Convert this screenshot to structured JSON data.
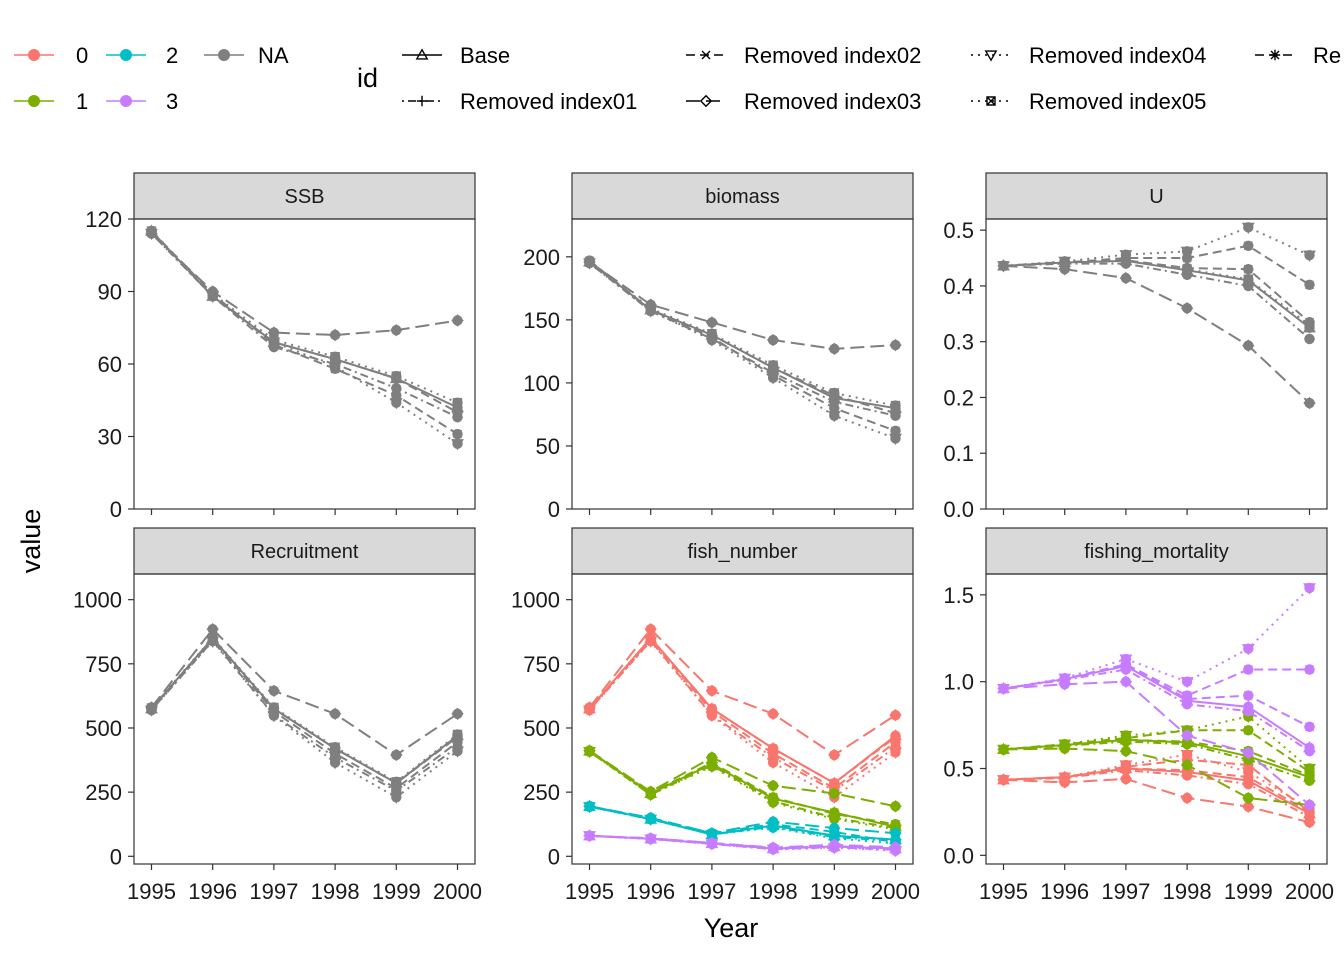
{
  "legend": {
    "colour": [
      {
        "label": "0",
        "color": "#F8766D"
      },
      {
        "label": "1",
        "color": "#7CAE00"
      },
      {
        "label": "2",
        "color": "#00BFC4"
      },
      {
        "label": "3",
        "color": "#C77CFF"
      },
      {
        "label": "NA",
        "color": "#7F7F7F"
      }
    ],
    "id_title": "id",
    "id": [
      {
        "label": "Base",
        "dash": "solid",
        "shape": "triangle"
      },
      {
        "label": "Removed index01",
        "dash": "dotdash",
        "shape": "plus"
      },
      {
        "label": "Removed index02",
        "dash": "dashed",
        "shape": "cross"
      },
      {
        "label": "Removed index03",
        "dash": "longdash",
        "shape": "diamond"
      },
      {
        "label": "Removed index04",
        "dash": "dotted",
        "shape": "triangle-down"
      },
      {
        "label": "Removed index05",
        "dash": "dotted",
        "shape": "square-cross"
      },
      {
        "label": "Re",
        "dash": "dashed",
        "shape": "asterisk"
      }
    ]
  },
  "axes": {
    "xlabel": "Year",
    "ylabel": "value"
  },
  "chart_data": [
    {
      "type": "line",
      "title": "SSB",
      "x": [
        1995,
        1996,
        1997,
        1998,
        1999,
        2000
      ],
      "ylim": [
        0,
        120
      ],
      "yticks": [
        "0",
        "30",
        "60",
        "90",
        "120"
      ],
      "series": [
        {
          "id": "Base",
          "group": "NA",
          "values": [
            115,
            88,
            69,
            62,
            54,
            42
          ]
        },
        {
          "id": "Removed index01",
          "group": "NA",
          "values": [
            114,
            88,
            67,
            60,
            50,
            38
          ]
        },
        {
          "id": "Removed index02",
          "group": "NA",
          "values": [
            115,
            89,
            68,
            58,
            47,
            31
          ]
        },
        {
          "id": "Removed index03",
          "group": "NA",
          "values": [
            114,
            90,
            73,
            72,
            74,
            78
          ]
        },
        {
          "id": "Removed index04",
          "group": "NA",
          "values": [
            114,
            88,
            69,
            59,
            44,
            27
          ]
        },
        {
          "id": "Removed index05",
          "group": "NA",
          "values": [
            115,
            89,
            70,
            63,
            55,
            44
          ]
        },
        {
          "id": "Re",
          "group": "NA",
          "values": [
            115,
            88,
            69,
            62,
            54,
            40
          ]
        }
      ]
    },
    {
      "type": "line",
      "title": "biomass",
      "x": [
        1995,
        1996,
        1997,
        1998,
        1999,
        2000
      ],
      "ylim": [
        0,
        230
      ],
      "yticks": [
        "0",
        "50",
        "100",
        "150",
        "200"
      ],
      "series": [
        {
          "id": "Base",
          "group": "NA",
          "values": [
            196,
            158,
            138,
            112,
            88,
            80
          ]
        },
        {
          "id": "Removed index01",
          "group": "NA",
          "values": [
            195,
            157,
            135,
            108,
            85,
            74
          ]
        },
        {
          "id": "Removed index02",
          "group": "NA",
          "values": [
            197,
            158,
            136,
            106,
            80,
            62
          ]
        },
        {
          "id": "Removed index03",
          "group": "NA",
          "values": [
            196,
            162,
            148,
            134,
            127,
            130
          ]
        },
        {
          "id": "Removed index04",
          "group": "NA",
          "values": [
            195,
            157,
            134,
            104,
            74,
            56
          ]
        },
        {
          "id": "Removed index05",
          "group": "NA",
          "values": [
            196,
            159,
            139,
            114,
            92,
            82
          ]
        },
        {
          "id": "Re",
          "group": "NA",
          "values": [
            196,
            158,
            138,
            112,
            90,
            76
          ]
        }
      ]
    },
    {
      "type": "line",
      "title": "U",
      "x": [
        1995,
        1996,
        1997,
        1998,
        1999,
        2000
      ],
      "ylim": [
        0,
        0.52
      ],
      "yticks": [
        "0.0",
        "0.1",
        "0.2",
        "0.3",
        "0.4",
        "0.5"
      ],
      "series": [
        {
          "id": "Base",
          "group": "NA",
          "values": [
            0.436,
            0.442,
            0.445,
            0.428,
            0.41,
            0.325
          ]
        },
        {
          "id": "Removed index01",
          "group": "NA",
          "values": [
            0.436,
            0.44,
            0.44,
            0.42,
            0.4,
            0.305
          ]
        },
        {
          "id": "Removed index02",
          "group": "NA",
          "values": [
            0.436,
            0.442,
            0.45,
            0.45,
            0.472,
            0.402
          ]
        },
        {
          "id": "Removed index03",
          "group": "NA",
          "values": [
            0.436,
            0.43,
            0.414,
            0.36,
            0.293,
            0.19
          ]
        },
        {
          "id": "Removed index04",
          "group": "NA",
          "values": [
            0.436,
            0.444,
            0.456,
            0.462,
            0.505,
            0.455
          ]
        },
        {
          "id": "Removed index05",
          "group": "NA",
          "values": [
            0.436,
            0.443,
            0.446,
            0.43,
            0.412,
            0.33
          ]
        },
        {
          "id": "Re",
          "group": "NA",
          "values": [
            0.436,
            0.443,
            0.446,
            0.432,
            0.43,
            0.335
          ]
        }
      ]
    },
    {
      "type": "line",
      "title": "Recruitment",
      "x": [
        1995,
        1996,
        1997,
        1998,
        1999,
        2000
      ],
      "ylim": [
        -30,
        1100
      ],
      "yticks": [
        "0",
        "250",
        "500",
        "750",
        "1000"
      ],
      "series": [
        {
          "id": "Base",
          "group": "NA",
          "values": [
            575,
            850,
            575,
            420,
            285,
            470
          ]
        },
        {
          "id": "Removed index01",
          "group": "NA",
          "values": [
            570,
            840,
            550,
            385,
            255,
            425
          ]
        },
        {
          "id": "Removed index02",
          "group": "NA",
          "values": [
            575,
            845,
            565,
            400,
            265,
            445
          ]
        },
        {
          "id": "Removed index03",
          "group": "NA",
          "values": [
            580,
            885,
            645,
            555,
            395,
            555
          ]
        },
        {
          "id": "Removed index04",
          "group": "NA",
          "values": [
            570,
            838,
            548,
            365,
            230,
            410
          ]
        },
        {
          "id": "Removed index05",
          "group": "NA",
          "values": [
            578,
            852,
            580,
            425,
            290,
            475
          ]
        },
        {
          "id": "Re",
          "group": "NA",
          "values": [
            575,
            850,
            575,
            420,
            285,
            465
          ]
        }
      ]
    },
    {
      "type": "line",
      "title": "fish_number",
      "x": [
        1995,
        1996,
        1997,
        1998,
        1999,
        2000
      ],
      "ylim": [
        -30,
        1100
      ],
      "yticks": [
        "0",
        "250",
        "500",
        "750",
        "1000"
      ],
      "series": [
        {
          "id": "Base",
          "group": "0",
          "values": [
            575,
            850,
            575,
            420,
            285,
            470
          ]
        },
        {
          "id": "Removed index01",
          "group": "0",
          "values": [
            570,
            840,
            550,
            385,
            255,
            425
          ]
        },
        {
          "id": "Removed index02",
          "group": "0",
          "values": [
            575,
            845,
            565,
            400,
            265,
            445
          ]
        },
        {
          "id": "Removed index03",
          "group": "0",
          "values": [
            580,
            885,
            645,
            555,
            395,
            550
          ]
        },
        {
          "id": "Removed index04",
          "group": "0",
          "values": [
            570,
            838,
            548,
            365,
            230,
            405
          ]
        },
        {
          "id": "Re",
          "group": "0",
          "values": [
            575,
            850,
            575,
            420,
            285,
            465
          ]
        },
        {
          "id": "Base",
          "group": "1",
          "values": [
            410,
            245,
            360,
            225,
            170,
            115
          ]
        },
        {
          "id": "Removed index01",
          "group": "1",
          "values": [
            408,
            240,
            355,
            215,
            150,
            110
          ]
        },
        {
          "id": "Removed index02",
          "group": "1",
          "values": [
            410,
            248,
            365,
            230,
            165,
            125
          ]
        },
        {
          "id": "Removed index03",
          "group": "1",
          "values": [
            412,
            252,
            385,
            275,
            245,
            195
          ]
        },
        {
          "id": "Removed index04",
          "group": "1",
          "values": [
            408,
            240,
            350,
            210,
            145,
            105
          ]
        },
        {
          "id": "Re",
          "group": "1",
          "values": [
            410,
            245,
            360,
            225,
            170,
            118
          ]
        },
        {
          "id": "Base",
          "group": "2",
          "values": [
            195,
            145,
            85,
            120,
            80,
            65
          ]
        },
        {
          "id": "Removed index01",
          "group": "2",
          "values": [
            193,
            145,
            85,
            115,
            75,
            60
          ]
        },
        {
          "id": "Removed index02",
          "group": "2",
          "values": [
            195,
            147,
            90,
            125,
            95,
            55
          ]
        },
        {
          "id": "Removed index03",
          "group": "2",
          "values": [
            195,
            150,
            90,
            135,
            110,
            90
          ]
        },
        {
          "id": "Removed index04",
          "group": "2",
          "values": [
            193,
            144,
            85,
            112,
            70,
            50
          ]
        },
        {
          "id": "Re",
          "group": "2",
          "values": [
            195,
            145,
            88,
            120,
            80,
            65
          ]
        },
        {
          "id": "Base",
          "group": "3",
          "values": [
            80,
            68,
            50,
            30,
            38,
            30
          ]
        },
        {
          "id": "Removed index01",
          "group": "3",
          "values": [
            80,
            68,
            48,
            28,
            35,
            25
          ]
        },
        {
          "id": "Removed index02",
          "group": "3",
          "values": [
            80,
            70,
            52,
            32,
            40,
            30
          ]
        },
        {
          "id": "Removed index03",
          "group": "3",
          "values": [
            80,
            70,
            52,
            34,
            45,
            35
          ]
        },
        {
          "id": "Removed index04",
          "group": "3",
          "values": [
            80,
            67,
            48,
            27,
            33,
            22
          ]
        },
        {
          "id": "Re",
          "group": "3",
          "values": [
            80,
            68,
            50,
            30,
            38,
            30
          ]
        }
      ]
    },
    {
      "type": "line",
      "title": "fishing_mortality",
      "x": [
        1995,
        1996,
        1997,
        1998,
        1999,
        2000
      ],
      "ylim": [
        -0.05,
        1.62
      ],
      "yticks": [
        "0.0",
        "0.5",
        "1.0",
        "1.5"
      ],
      "series": [
        {
          "id": "Base",
          "group": "0",
          "values": [
            0.435,
            0.45,
            0.5,
            0.48,
            0.43,
            0.24
          ]
        },
        {
          "id": "Removed index01",
          "group": "0",
          "values": [
            0.435,
            0.445,
            0.49,
            0.46,
            0.41,
            0.22
          ]
        },
        {
          "id": "Removed index02",
          "group": "0",
          "values": [
            0.435,
            0.45,
            0.51,
            0.55,
            0.52,
            0.25
          ]
        },
        {
          "id": "Removed index03",
          "group": "0",
          "values": [
            0.435,
            0.42,
            0.44,
            0.33,
            0.28,
            0.19
          ]
        },
        {
          "id": "Removed index04",
          "group": "0",
          "values": [
            0.435,
            0.45,
            0.52,
            0.58,
            0.48,
            0.27
          ]
        },
        {
          "id": "Re",
          "group": "0",
          "values": [
            0.435,
            0.45,
            0.5,
            0.49,
            0.45,
            0.25
          ]
        },
        {
          "id": "Base",
          "group": "1",
          "values": [
            0.61,
            0.635,
            0.665,
            0.65,
            0.57,
            0.45
          ]
        },
        {
          "id": "Removed index01",
          "group": "1",
          "values": [
            0.61,
            0.63,
            0.655,
            0.64,
            0.55,
            0.43
          ]
        },
        {
          "id": "Removed index02",
          "group": "1",
          "values": [
            0.61,
            0.64,
            0.675,
            0.72,
            0.72,
            0.48
          ]
        },
        {
          "id": "Removed index03",
          "group": "1",
          "values": [
            0.61,
            0.615,
            0.6,
            0.52,
            0.33,
            0.29
          ]
        },
        {
          "id": "Removed index04",
          "group": "1",
          "values": [
            0.61,
            0.64,
            0.69,
            0.72,
            0.8,
            0.5
          ]
        },
        {
          "id": "Re",
          "group": "1",
          "values": [
            0.61,
            0.635,
            0.665,
            0.655,
            0.6,
            0.46
          ]
        },
        {
          "id": "Base",
          "group": "3",
          "values": [
            0.96,
            1.015,
            1.09,
            0.89,
            0.855,
            0.62
          ]
        },
        {
          "id": "Removed index01",
          "group": "3",
          "values": [
            0.96,
            1.01,
            1.07,
            0.87,
            0.83,
            0.6
          ]
        },
        {
          "id": "Removed index02",
          "group": "3",
          "values": [
            0.96,
            1.015,
            1.1,
            0.92,
            1.07,
            1.07
          ]
        },
        {
          "id": "Removed index03",
          "group": "3",
          "values": [
            0.96,
            0.985,
            1.0,
            0.69,
            0.59,
            0.29
          ]
        },
        {
          "id": "Removed index04",
          "group": "3",
          "values": [
            0.96,
            1.02,
            1.13,
            1.0,
            1.19,
            1.54
          ]
        },
        {
          "id": "Re",
          "group": "3",
          "values": [
            0.96,
            1.015,
            1.1,
            0.9,
            0.92,
            0.74
          ]
        }
      ]
    }
  ]
}
